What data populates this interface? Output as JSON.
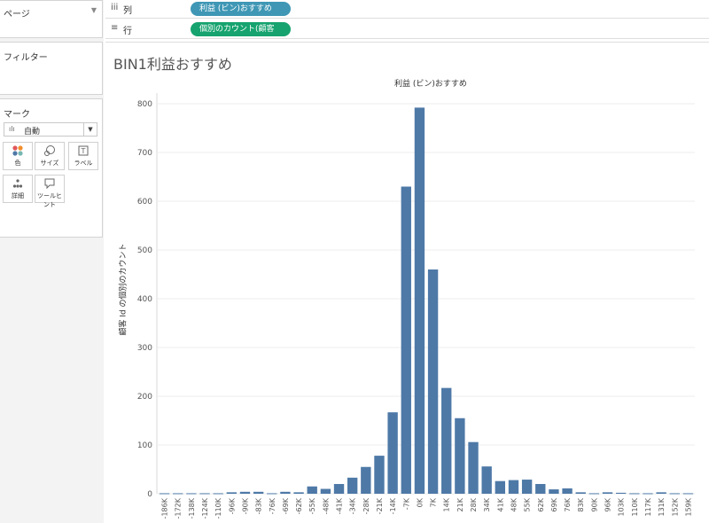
{
  "pages_card": {
    "title": "ページ"
  },
  "filters_card": {
    "title": "フィルター"
  },
  "marks_card": {
    "title": "マーク",
    "type_label": "自動",
    "buttons": [
      {
        "label": "色",
        "icon": "color-icon"
      },
      {
        "label": "サイズ",
        "icon": "size-icon"
      },
      {
        "label": "ラベル",
        "icon": "label-icon"
      },
      {
        "label": "詳細",
        "icon": "detail-icon"
      },
      {
        "label": "ツールヒント",
        "icon": "tooltip-icon"
      }
    ]
  },
  "shelves": {
    "columns": {
      "label": "列",
      "pill": "利益 (ビン)おすすめ",
      "color": "#3f97b5"
    },
    "rows": {
      "label": "行",
      "pill": "個別のカウント(顧客 Id)",
      "color": "#16a36f"
    }
  },
  "sheet": {
    "title": "BIN1利益おすすめ"
  },
  "chart_data": {
    "type": "bar",
    "title": "利益 (ビン)おすすめ",
    "xlabel": "",
    "ylabel": "顧客 Id の個別のカウント",
    "ylim": [
      0,
      800
    ],
    "yticks": [
      "0",
      "100",
      "200",
      "300",
      "400",
      "500",
      "600",
      "700",
      "800"
    ],
    "bar_color": "#4e79a7",
    "grid": true,
    "categories": [
      "-186K",
      "-172K",
      "-138K",
      "-124K",
      "-110K",
      "-96K",
      "-90K",
      "-83K",
      "-76K",
      "-69K",
      "-62K",
      "-55K",
      "-48K",
      "-41K",
      "-34K",
      "-28K",
      "-21K",
      "-14K",
      "-7K",
      "0K",
      "7K",
      "14K",
      "21K",
      "28K",
      "34K",
      "41K",
      "48K",
      "55K",
      "62K",
      "69K",
      "76K",
      "83K",
      "90K",
      "96K",
      "103K",
      "110K",
      "117K",
      "131K",
      "152K",
      "159K"
    ],
    "values": [
      1,
      1,
      1,
      1,
      1,
      3,
      4,
      4,
      1,
      4,
      3,
      15,
      10,
      20,
      33,
      55,
      78,
      167,
      630,
      792,
      460,
      217,
      155,
      106,
      56,
      26,
      28,
      29,
      20,
      9,
      11,
      3,
      1,
      3,
      2,
      1,
      1,
      3,
      1,
      1
    ]
  }
}
